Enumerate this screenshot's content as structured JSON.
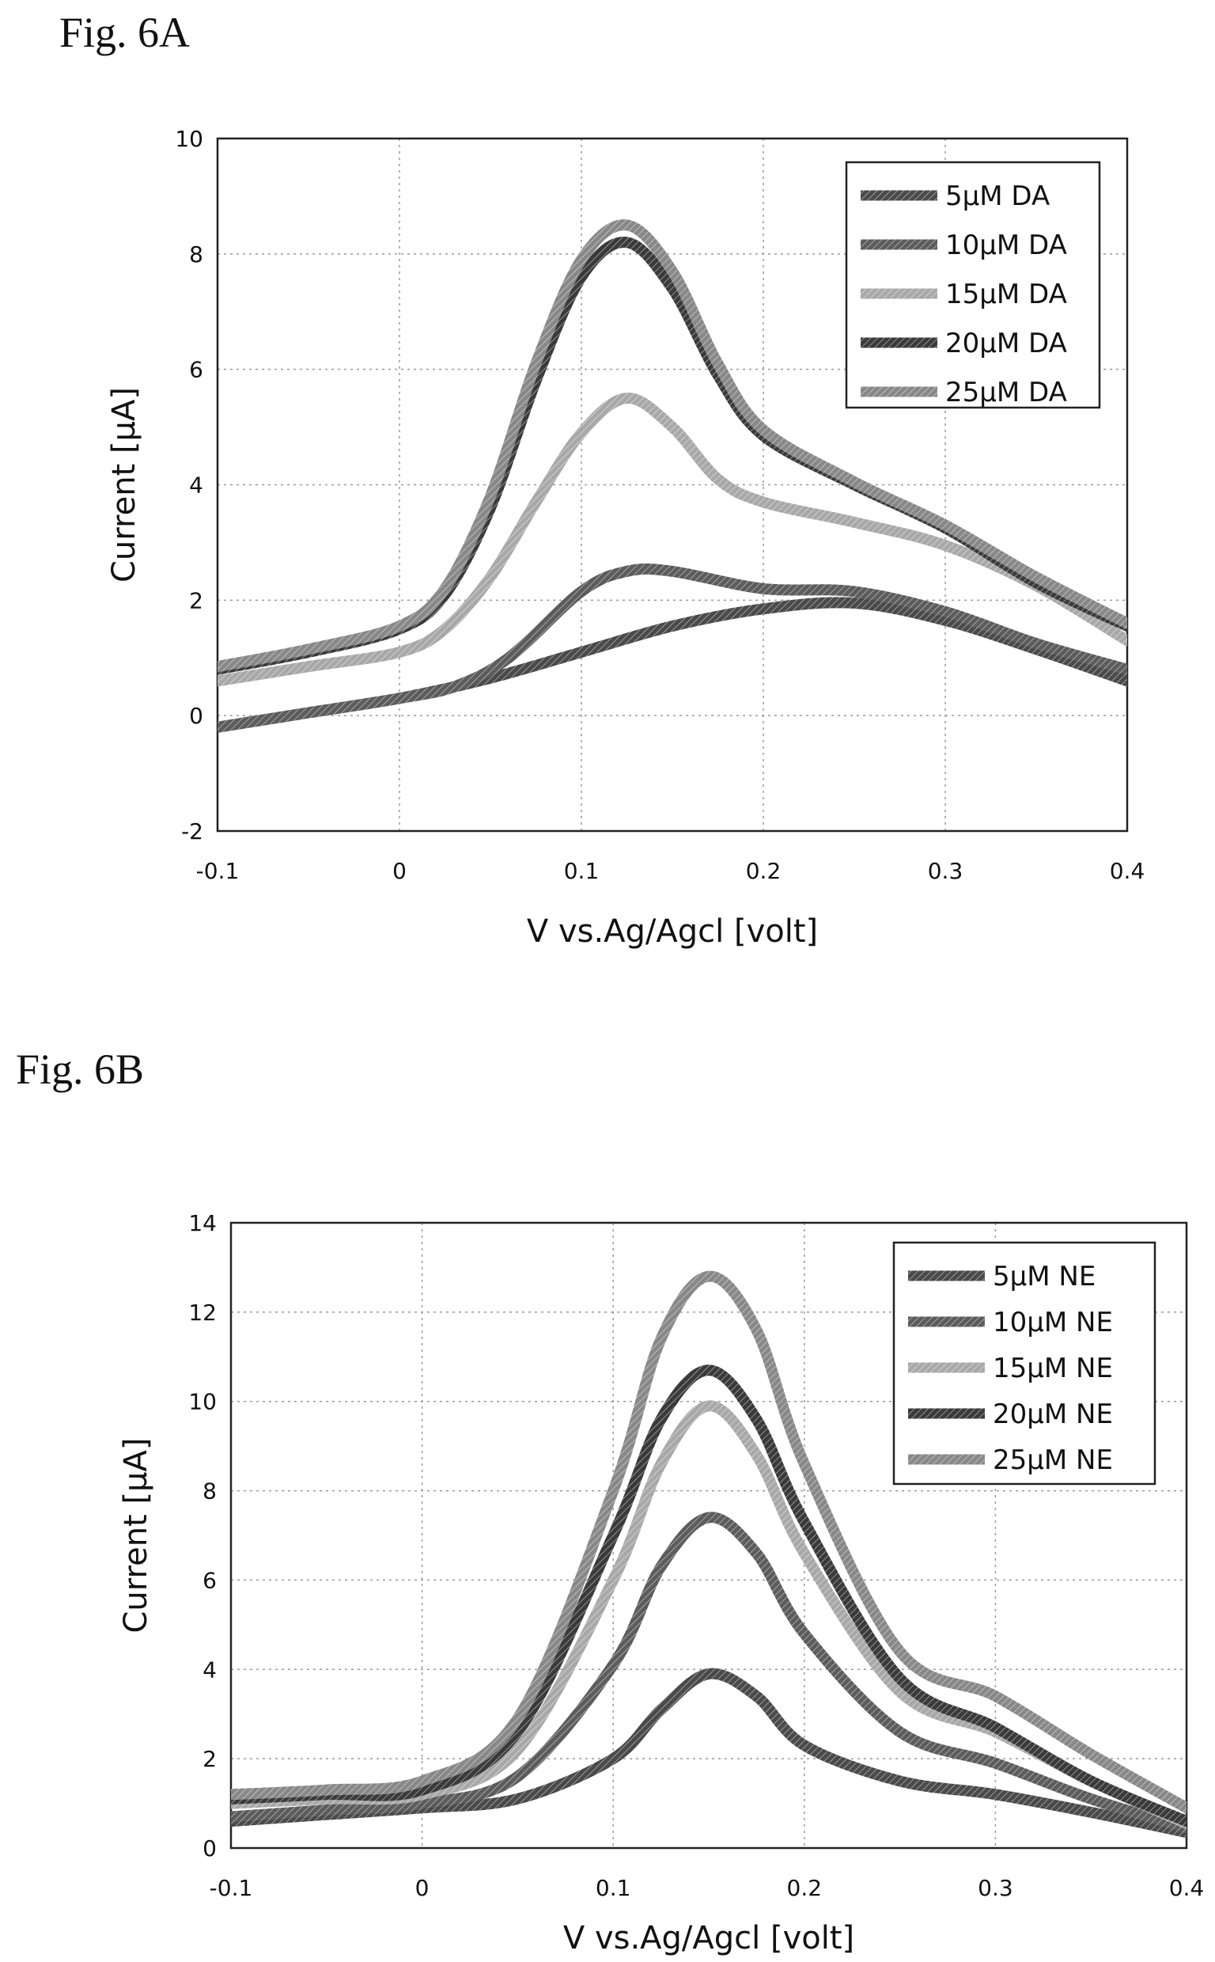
{
  "page": {
    "fig_a_title": "Fig. 6A",
    "fig_b_title": "Fig. 6B"
  },
  "chart_data": [
    {
      "type": "line",
      "title": "Fig. 6A",
      "xlabel": "V vs.Ag/Agcl [volt]",
      "ylabel": "Current [μA]",
      "xlim": [
        -0.1,
        0.4
      ],
      "ylim": [
        -2,
        10
      ],
      "x_ticks": [
        "-0.1",
        "0",
        "0.1",
        "0.2",
        "0.3",
        "0.4"
      ],
      "y_ticks": [
        "-2",
        "0",
        "2",
        "4",
        "6",
        "8",
        "10"
      ],
      "grid": true,
      "legend_position": "top-right",
      "series": [
        {
          "name": "5μM DA",
          "color": "#4a4a4a",
          "x": [
            -0.1,
            -0.05,
            0.0,
            0.05,
            0.1,
            0.15,
            0.2,
            0.25,
            0.3,
            0.35,
            0.4
          ],
          "y": [
            -0.2,
            0.05,
            0.3,
            0.65,
            1.1,
            1.55,
            1.85,
            1.95,
            1.65,
            1.15,
            0.6
          ]
        },
        {
          "name": "10μM DA",
          "color": "#5c5c5c",
          "x": [
            -0.1,
            -0.05,
            0.0,
            0.03,
            0.06,
            0.1,
            0.125,
            0.15,
            0.2,
            0.25,
            0.3,
            0.35,
            0.4
          ],
          "y": [
            -0.2,
            0.05,
            0.3,
            0.5,
            1.0,
            2.15,
            2.5,
            2.5,
            2.2,
            2.15,
            1.8,
            1.25,
            0.8
          ]
        },
        {
          "name": "15μM DA",
          "color": "#a8a8a8",
          "x": [
            -0.1,
            -0.05,
            0.0,
            0.025,
            0.05,
            0.075,
            0.1,
            0.125,
            0.15,
            0.175,
            0.2,
            0.25,
            0.3,
            0.35,
            0.4
          ],
          "y": [
            0.6,
            0.85,
            1.1,
            1.5,
            2.4,
            3.7,
            4.9,
            5.5,
            5.0,
            4.1,
            3.7,
            3.35,
            2.95,
            2.25,
            1.3
          ]
        },
        {
          "name": "20μM DA",
          "color": "#3a3a3a",
          "x": [
            -0.1,
            -0.05,
            0.0,
            0.025,
            0.05,
            0.075,
            0.1,
            0.125,
            0.15,
            0.175,
            0.2,
            0.25,
            0.3,
            0.35,
            0.4
          ],
          "y": [
            0.8,
            1.1,
            1.5,
            2.1,
            3.6,
            5.8,
            7.6,
            8.2,
            7.4,
            5.9,
            4.85,
            4.0,
            3.25,
            2.3,
            1.55
          ]
        },
        {
          "name": "25μM DA",
          "color": "#888888",
          "x": [
            -0.1,
            -0.05,
            0.0,
            0.025,
            0.05,
            0.075,
            0.1,
            0.125,
            0.15,
            0.175,
            0.2,
            0.25,
            0.3,
            0.35,
            0.4
          ],
          "y": [
            0.85,
            1.15,
            1.55,
            2.2,
            3.8,
            6.1,
            7.9,
            8.5,
            7.7,
            6.1,
            4.95,
            4.05,
            3.3,
            2.4,
            1.6
          ]
        }
      ]
    },
    {
      "type": "line",
      "title": "Fig. 6B",
      "xlabel": "V vs.Ag/Agcl [volt]",
      "ylabel": "Current [μA]",
      "xlim": [
        -0.1,
        0.4
      ],
      "ylim": [
        0,
        14
      ],
      "x_ticks": [
        "-0.1",
        "0",
        "0.1",
        "0.2",
        "0.3",
        "0.4"
      ],
      "y_ticks": [
        "0",
        "2",
        "4",
        "6",
        "8",
        "10",
        "12",
        "14"
      ],
      "grid": true,
      "legend_position": "top-right",
      "series": [
        {
          "name": "5μM NE",
          "color": "#4a4a4a",
          "x": [
            -0.1,
            -0.05,
            0.0,
            0.05,
            0.1,
            0.125,
            0.15,
            0.175,
            0.2,
            0.25,
            0.3,
            0.35,
            0.4
          ],
          "y": [
            0.6,
            0.75,
            0.9,
            1.1,
            2.0,
            3.1,
            3.9,
            3.4,
            2.3,
            1.5,
            1.2,
            0.8,
            0.35
          ]
        },
        {
          "name": "10μM NE",
          "color": "#5c5c5c",
          "x": [
            -0.1,
            -0.05,
            0.0,
            0.05,
            0.1,
            0.125,
            0.15,
            0.175,
            0.2,
            0.25,
            0.3,
            0.35,
            0.4
          ],
          "y": [
            0.7,
            0.85,
            1.0,
            1.6,
            4.1,
            6.3,
            7.4,
            6.6,
            4.8,
            2.6,
            1.9,
            1.1,
            0.45
          ]
        },
        {
          "name": "15μM NE",
          "color": "#a8a8a8",
          "x": [
            -0.1,
            -0.05,
            0.0,
            0.05,
            0.1,
            0.125,
            0.15,
            0.175,
            0.2,
            0.25,
            0.3,
            0.35,
            0.4
          ],
          "y": [
            1.0,
            1.1,
            1.2,
            2.2,
            6.0,
            8.6,
            9.9,
            8.8,
            6.6,
            3.5,
            2.6,
            1.5,
            0.55
          ]
        },
        {
          "name": "20μM NE",
          "color": "#3a3a3a",
          "x": [
            -0.1,
            -0.05,
            0.0,
            0.05,
            0.1,
            0.125,
            0.15,
            0.175,
            0.2,
            0.25,
            0.3,
            0.35,
            0.4
          ],
          "y": [
            1.1,
            1.2,
            1.3,
            2.6,
            7.0,
            9.6,
            10.7,
            9.6,
            7.3,
            3.8,
            2.7,
            1.5,
            0.6
          ]
        },
        {
          "name": "25μM NE",
          "color": "#888888",
          "x": [
            -0.1,
            -0.05,
            0.0,
            0.05,
            0.1,
            0.125,
            0.15,
            0.175,
            0.2,
            0.25,
            0.3,
            0.35,
            0.4
          ],
          "y": [
            1.2,
            1.3,
            1.5,
            2.9,
            8.0,
            11.4,
            12.8,
            11.6,
            8.6,
            4.4,
            3.4,
            2.1,
            0.9
          ]
        }
      ]
    }
  ]
}
